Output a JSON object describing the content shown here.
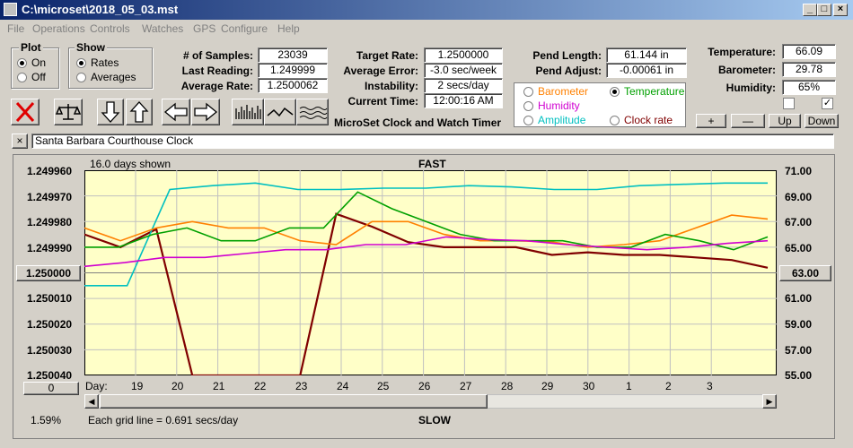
{
  "window": {
    "title": "C:\\microset\\2018_05_03.mst"
  },
  "menu": [
    "File",
    "Operations",
    "Controls",
    "Watches",
    "GPS",
    "Configure",
    "Help"
  ],
  "plot": {
    "title": "Plot",
    "on": "On",
    "off": "Off"
  },
  "show": {
    "title": "Show",
    "rates": "Rates",
    "averages": "Averages"
  },
  "stats1": {
    "samples_label": "# of Samples:",
    "samples": "23039",
    "last_label": "Last Reading:",
    "last": "1.249999",
    "avg_label": "Average Rate:",
    "avg": "1.2500062"
  },
  "stats2": {
    "target_label": "Target Rate:",
    "target": "1.2500000",
    "err_label": "Average Error:",
    "err": "-3.0 sec/week",
    "inst_label": "Instability:",
    "inst": "2 secs/day",
    "time_label": "Current Time:",
    "time": "12:00:16 AM",
    "app_name": "MicroSet Clock and Watch Timer"
  },
  "pend": {
    "len_label": "Pend Length:",
    "len": "61.144 in",
    "adj_label": "Pend Adjust:",
    "adj": "-0.00061 in"
  },
  "env": {
    "temp_label": "Temperature:",
    "temp": "66.09",
    "baro_label": "Barometer:",
    "baro": "29.78",
    "hum_label": "Humidity:",
    "hum": "65%"
  },
  "sensor_options": {
    "barometer": "Barometer",
    "temperature": "Temperature",
    "humidity": "Humidity",
    "amplitude": "Amplitude",
    "clock_rate": "Clock rate"
  },
  "colors": {
    "barometer": "#ff8000",
    "temperature": "#00a000",
    "humidity": "#d000d0",
    "amplitude": "#00c0c0",
    "rate": "#800000"
  },
  "adjust_buttons": {
    "plus": "+",
    "minus": "—",
    "up": "Up",
    "down": "Down"
  },
  "description": "Santa Barbara Courthouse Clock",
  "chart": {
    "days_shown": "16.0 days shown",
    "fast": "FAST",
    "slow": "SLOW",
    "grid_note": "Each grid line = 0.691 secs/day",
    "zoom": "1.59%",
    "center_value": "1.250000",
    "right_center": "63.00",
    "left_bottom_btn": "0",
    "day_label": "Day:",
    "y_left": [
      "1.249960",
      "1.249970",
      "1.249980",
      "1.249990",
      "1.250010",
      "1.250020",
      "1.250030",
      "1.250040"
    ],
    "y_right": [
      "71.00",
      "69.00",
      "67.00",
      "65.00",
      "61.00",
      "59.00",
      "57.00",
      "55.00"
    ],
    "days": [
      "19",
      "20",
      "21",
      "22",
      "23",
      "24",
      "25",
      "26",
      "27",
      "28",
      "29",
      "30",
      "1",
      "2",
      "3"
    ]
  },
  "chart_data": {
    "type": "line",
    "x_axis": "Day",
    "x_ticks": [
      "19",
      "20",
      "21",
      "22",
      "23",
      "24",
      "25",
      "26",
      "27",
      "28",
      "29",
      "30",
      "1",
      "2",
      "3"
    ],
    "y_left_range": [
      1.24996,
      1.25004
    ],
    "y_right_range": [
      55,
      71
    ],
    "grid": true,
    "series": [
      {
        "color": "#800000",
        "values": [
          1.249985,
          1.24999,
          1.249983,
          1.25004,
          1.25004,
          1.25004,
          1.25004,
          1.249977,
          1.249982,
          1.249988,
          1.24999,
          1.24999,
          1.24999,
          1.249993,
          1.249992,
          1.249993,
          1.249993,
          1.249994,
          1.249995,
          1.249998
        ]
      },
      {
        "color": "#00c0c0",
        "values": [
          62,
          62,
          69.5,
          69.8,
          70,
          69.5,
          69.5,
          69.6,
          69.6,
          69.8,
          69.7,
          69.5,
          69.5,
          69.8,
          69.9,
          70,
          70
        ]
      },
      {
        "color": "#ff8000",
        "values": [
          66.5,
          65.5,
          66.5,
          67,
          66.5,
          66.5,
          65.5,
          65.2,
          67,
          67,
          66,
          65.5,
          65.5,
          65.4,
          65,
          65.2,
          65.5,
          66.5,
          67.5,
          67.2
        ]
      },
      {
        "color": "#00a000",
        "values": [
          65,
          65,
          66,
          66.5,
          65.5,
          65.5,
          66.5,
          66.5,
          69.3,
          68,
          67,
          66,
          65.5,
          65.5,
          65.5,
          65,
          65,
          66,
          65.5,
          64.8,
          65.8
        ]
      },
      {
        "color": "#d000d0",
        "values": [
          63.5,
          63.8,
          64.2,
          64.2,
          64.5,
          64.8,
          64.8,
          65.2,
          65.2,
          65.8,
          65.6,
          65.5,
          65.2,
          65,
          64.8,
          65,
          65.3,
          65.5
        ]
      }
    ]
  }
}
